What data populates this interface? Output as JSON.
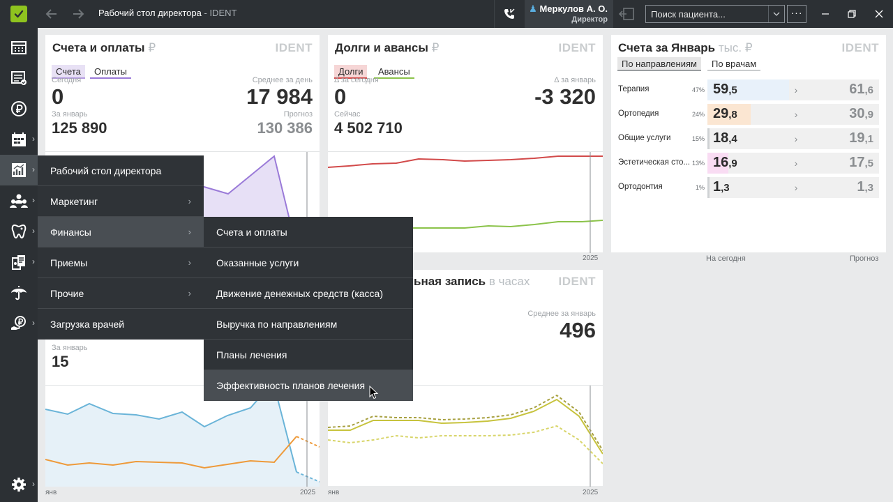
{
  "window": {
    "title": "Рабочий стол директора",
    "app_name": "IDENT",
    "back_icon": "back-arrow-icon",
    "forward_icon": "forward-arrow-icon"
  },
  "user": {
    "name": "Меркулов А. О.",
    "role": "Директор"
  },
  "search": {
    "placeholder": "Поиск пациента..."
  },
  "more_label": "···",
  "rail": {
    "icons": [
      "logo-check-icon",
      "calendar-grid-icon",
      "schedule-list-icon",
      "ruble-icon",
      "calendar-board-icon",
      "analytics-chart-icon",
      "people-icon",
      "tooth-icon",
      "documents-icon",
      "umbrella-icon",
      "money-hand-icon",
      "settings-gear-icon"
    ]
  },
  "card_invoices": {
    "title": "Счета и оплаты",
    "unit": "₽",
    "brand": "IDENT",
    "tabs": [
      "Счета",
      "Оплаты"
    ],
    "today_label": "Сегодня",
    "today_value": "0",
    "avg_label": "Среднее за день",
    "avg_value": "17 984",
    "month_label": "За январь",
    "month_value": "125 890",
    "forecast_label": "Прогноз",
    "forecast_value": "130 386"
  },
  "card_debts": {
    "title": "Долги и авансы",
    "unit": "₽",
    "brand": "IDENT",
    "tabs": [
      "Долги",
      "Авансы"
    ],
    "delta_today_label": "Δ за сегодня",
    "delta_today_value": "0",
    "delta_month_label": "Δ за январь",
    "delta_month_value": "-3 320",
    "now_label": "Сейчас",
    "now_value": "4 502 710",
    "axis_end": "2025"
  },
  "card_month": {
    "title": "Счета за Январь",
    "unit": "тыс. ₽",
    "brand": "IDENT",
    "tabs": [
      "По направлениям",
      "По врачам"
    ],
    "rows": [
      {
        "name": "Терапия",
        "pct": "47%",
        "today_int": "59",
        "today_dec": ",5",
        "forecast_int": "61",
        "forecast_dec": ",6",
        "fill_fraction": 0.47,
        "color": "#e8f1fa"
      },
      {
        "name": "Ортопедия",
        "pct": "24%",
        "today_int": "29",
        "today_dec": ",8",
        "forecast_int": "30",
        "forecast_dec": ",9",
        "fill_fraction": 0.24,
        "color": "#fbe6d2"
      },
      {
        "name": "Общие услуги",
        "pct": "15%",
        "today_int": "18",
        "today_dec": ",4",
        "forecast_int": "19",
        "forecast_dec": ",1",
        "fill_fraction": 0.15,
        "color": "#e6e6e6"
      },
      {
        "name": "Эстетическая сто...",
        "pct": "13%",
        "today_int": "16",
        "today_dec": ",9",
        "forecast_int": "17",
        "forecast_dec": ",5",
        "fill_fraction": 0.13,
        "color": "#f9dcf3"
      },
      {
        "name": "Ортодонтия",
        "pct": "1%",
        "today_int": "1",
        "today_dec": ",3",
        "forecast_int": "1",
        "forecast_dec": ",3",
        "fill_fraction": 0.01,
        "color": "#e6e6e6"
      }
    ],
    "footer_today": "На сегодня",
    "footer_forecast": "Прогноз"
  },
  "card_visits": {
    "month_label": "За январь",
    "month_value": "15",
    "axis_start": "янв",
    "axis_end": "2025"
  },
  "card_booking": {
    "title": "ьная запись",
    "unit": "в часах",
    "brand": "IDENT",
    "avg_label": "Среднее за январь",
    "avg_value": "496",
    "axis_start": "янв",
    "axis_end": "2025"
  },
  "menu_main": {
    "items": [
      {
        "label": "Рабочий стол директора",
        "has_sub": false
      },
      {
        "label": "Маркетинг",
        "has_sub": true
      },
      {
        "label": "Финансы",
        "has_sub": true
      },
      {
        "label": "Приемы",
        "has_sub": true
      },
      {
        "label": "Прочие",
        "has_sub": true
      },
      {
        "label": "Загрузка врачей",
        "has_sub": false
      }
    ],
    "submenu_icon": "chevron-right-icon"
  },
  "menu_finance": {
    "items": [
      {
        "label": "Счета и оплаты"
      },
      {
        "label": "Оказанные услуги"
      },
      {
        "label": "Движение денежных средств (касса)"
      },
      {
        "label": "Выручка по направлениям"
      },
      {
        "label": "Планы лечения"
      },
      {
        "label": "Эффективность планов лечения"
      }
    ]
  },
  "chevron": "›",
  "colors": {
    "accent_green": "#8fc31f",
    "invoices_tab": "#b49be0",
    "invoices_line": "#9a7ad8",
    "debt_red": "#d24a4a",
    "advance_green": "#8bc34a",
    "visits_blue": "#6ab4d8",
    "visits_orange": "#ee9a3a",
    "booking_olive": "#c7c33d",
    "booking_dark": "#a7a040"
  }
}
